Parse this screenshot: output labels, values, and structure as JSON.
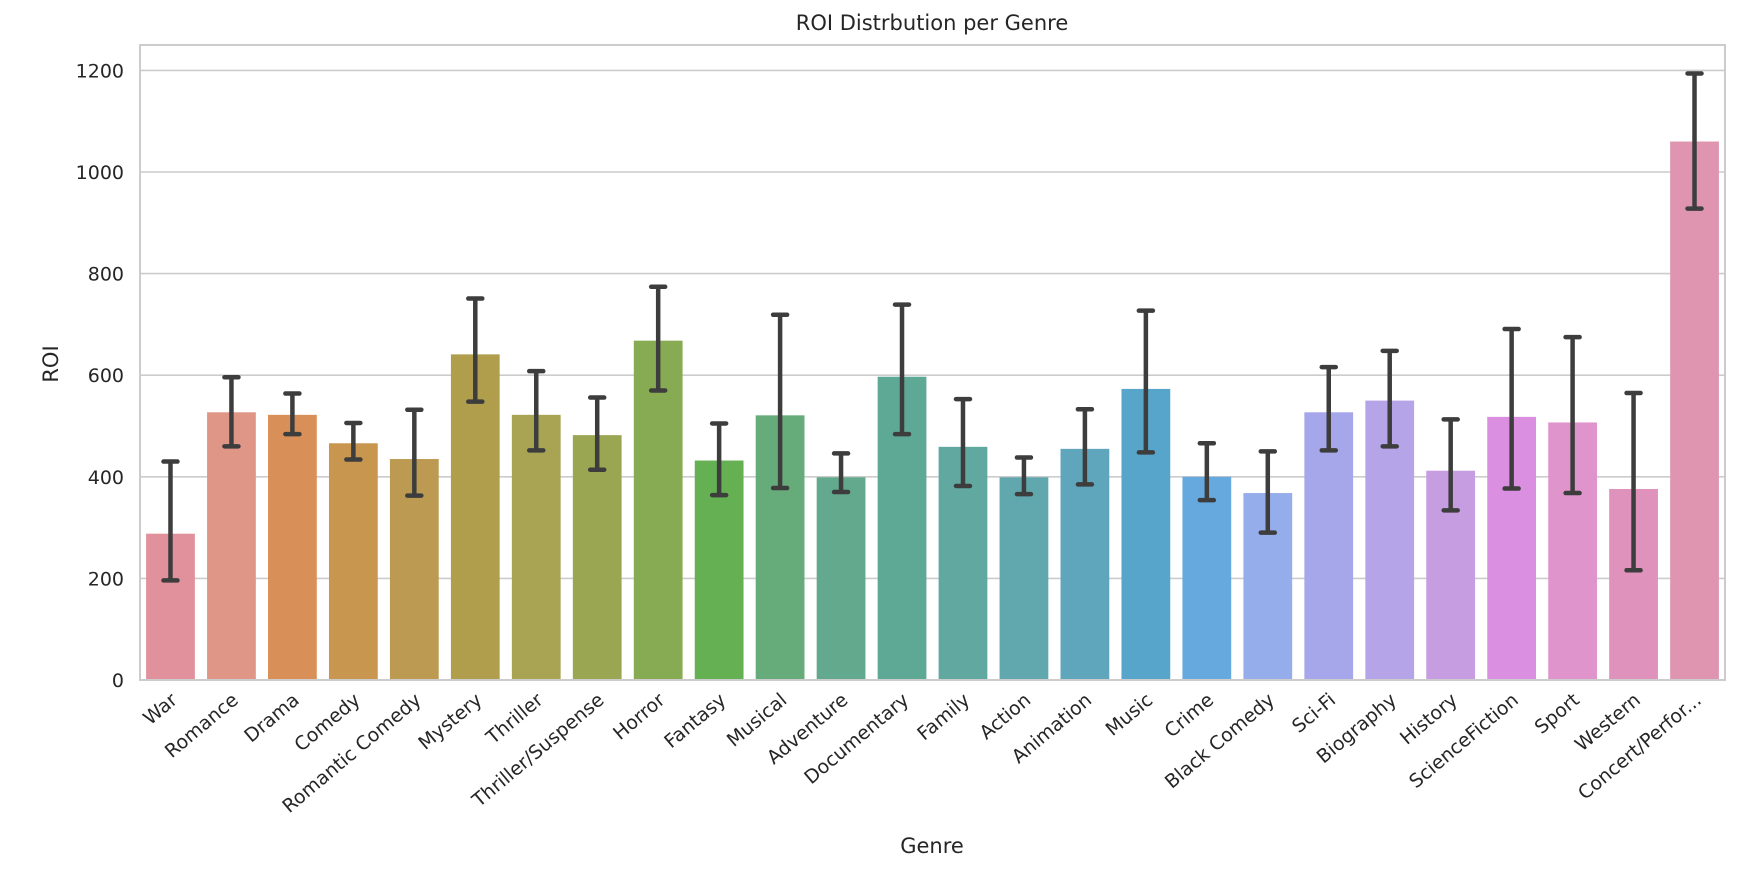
{
  "chart_data": {
    "type": "bar",
    "title": "ROI Distrbution per Genre",
    "xlabel": "Genre",
    "ylabel": "ROI",
    "ylim": [
      0,
      1250
    ],
    "yticks": [
      0,
      200,
      400,
      600,
      800,
      1000,
      1200
    ],
    "grid": true,
    "categories": [
      "War",
      "Romance",
      "Drama",
      "Comedy",
      "Romantic Comedy",
      "Mystery",
      "Thriller",
      "Thriller/Suspense",
      "Horror",
      "Fantasy",
      "Musical",
      "Adventure",
      "Documentary",
      "Family",
      "Action",
      "Animation",
      "Music",
      "Crime",
      "Black Comedy",
      "Sci-Fi",
      "Biography",
      "History",
      "ScienceFiction",
      "Sport",
      "Western",
      "Concert/Perfor..."
    ],
    "values": [
      288,
      527,
      522,
      466,
      435,
      641,
      522,
      482,
      668,
      432,
      521,
      399,
      597,
      459,
      399,
      455,
      573,
      400,
      368,
      527,
      550,
      412,
      518,
      507,
      376,
      1060
    ],
    "error_low": [
      196,
      460,
      484,
      434,
      363,
      548,
      452,
      414,
      570,
      364,
      378,
      370,
      484,
      382,
      366,
      385,
      448,
      354,
      290,
      452,
      460,
      334,
      377,
      368,
      216,
      928
    ],
    "error_high": [
      430,
      596,
      564,
      506,
      532,
      751,
      608,
      556,
      774,
      505,
      719,
      446,
      739,
      553,
      438,
      533,
      727,
      466,
      450,
      616,
      648,
      513,
      691,
      675,
      565,
      1194
    ],
    "colors": [
      "#e0919c",
      "#df9686",
      "#d99058",
      "#c9964f",
      "#bd9a52",
      "#b09e4d",
      "#a9a454",
      "#9aa651",
      "#86ab53",
      "#64b052",
      "#66ab7a",
      "#62a98d",
      "#5ea996",
      "#61a8a1",
      "#60a8ad",
      "#5fa6bc",
      "#57a5ca",
      "#65a9df",
      "#95adea",
      "#a6a6ea",
      "#b6a4e8",
      "#c69de1",
      "#da8fe0",
      "#df95cc",
      "#df92bc",
      "#df95b0"
    ]
  }
}
